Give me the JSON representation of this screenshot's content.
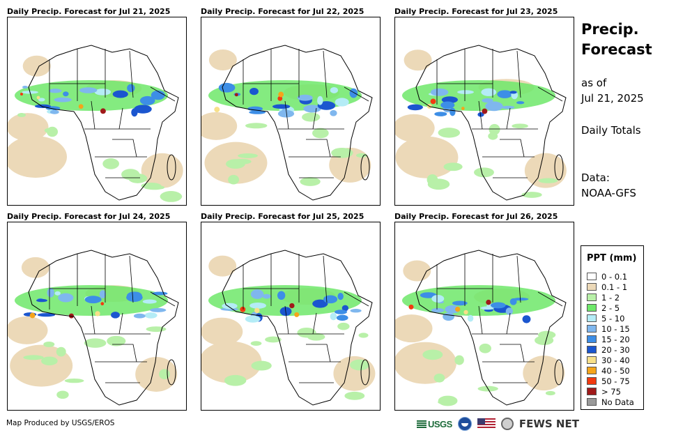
{
  "panels": [
    {
      "title": "Daily Precip. Forecast for Jul 21, 2025"
    },
    {
      "title": "Daily Precip. Forecast for Jul 22, 2025"
    },
    {
      "title": "Daily Precip. Forecast for Jul 23, 2025"
    },
    {
      "title": "Daily Precip. Forecast for Jul 24, 2025"
    },
    {
      "title": "Daily Precip. Forecast for Jul 25, 2025"
    },
    {
      "title": "Daily Precip. Forecast for Jul 26, 2025"
    }
  ],
  "side": {
    "title": "Precip. Forecast",
    "as_of_label": "as of",
    "as_of_date": "Jul 21, 2025",
    "totals": "Daily Totals",
    "data_label": "Data:",
    "data_source": "NOAA-GFS"
  },
  "legend": {
    "title": "PPT (mm)",
    "items": [
      {
        "label": "0 - 0.1",
        "color": "#ffffff"
      },
      {
        "label": "0.1 - 1",
        "color": "#ecd9b8"
      },
      {
        "label": "1 - 2",
        "color": "#b8f0a8"
      },
      {
        "label": "2 - 5",
        "color": "#6ee86a"
      },
      {
        "label": "5 - 10",
        "color": "#b4ecf6"
      },
      {
        "label": "10 - 15",
        "color": "#7fb7ee"
      },
      {
        "label": "15 - 20",
        "color": "#3d8ee6"
      },
      {
        "label": "20 - 30",
        "color": "#1b56cf"
      },
      {
        "label": "30 - 40",
        "color": "#f7e08a"
      },
      {
        "label": "40 - 50",
        "color": "#f5a41a"
      },
      {
        "label": "50 - 75",
        "color": "#f23a10"
      },
      {
        "label": "> 75",
        "color": "#a01a1a"
      },
      {
        "label": "No Data",
        "color": "#9a9a9a"
      }
    ]
  },
  "footer": {
    "credit": "Map Produced by USGS/EROS",
    "usgs_logo_text": "USGS",
    "fews_logo_text": "FEWS NET"
  }
}
